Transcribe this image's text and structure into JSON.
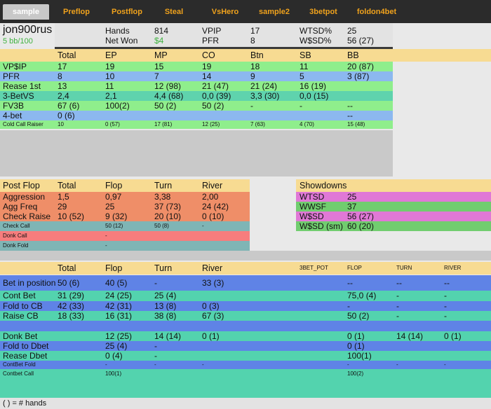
{
  "tabs": [
    {
      "label": "sample",
      "active": true
    },
    {
      "label": "Preflop",
      "active": false
    },
    {
      "label": "Postflop",
      "active": false
    },
    {
      "label": "Steal",
      "active": false
    },
    {
      "label": "VsHero",
      "active": false
    },
    {
      "label": "sample2",
      "active": false
    },
    {
      "label": "3betpot",
      "active": false
    },
    {
      "label": "foldon4bet",
      "active": false
    }
  ],
  "player": {
    "name": "jon900rus",
    "rate": "5 bb/100",
    "stats_row1": [
      "Hands",
      "814",
      "VPIP",
      "17",
      "WTSD%",
      "25"
    ],
    "stats_row2": [
      "Net Won",
      "$4",
      "PFR",
      "8",
      "W$SD%",
      "56 (27)"
    ]
  },
  "preflop": {
    "headers": [
      "Total",
      "EP",
      "MP",
      "CO",
      "Btn",
      "SB",
      "BB"
    ],
    "rows": [
      {
        "label": "VP$IP",
        "cells": [
          "17",
          "19",
          "15",
          "19",
          "18",
          "11",
          "20 (87)"
        ]
      },
      {
        "label": "PFR",
        "cells": [
          "8",
          "10",
          "7",
          "14",
          "9",
          "5",
          "3 (87)"
        ]
      },
      {
        "label": "Rease 1st",
        "cells": [
          "13",
          "11",
          "12 (98)",
          "21 (47)",
          "21 (24)",
          "16 (19)",
          ""
        ]
      },
      {
        "label": "3-BetVS",
        "cells": [
          "2,4",
          "2,1",
          "4,4 (68)",
          "0,0 (39)",
          "3,3 (30)",
          "0,0 (15)",
          ""
        ]
      },
      {
        "label": "FV3B",
        "cells": [
          "67 (6)",
          "100(2)",
          "50 (2)",
          "50 (2)",
          "-",
          "-",
          "--"
        ]
      },
      {
        "label": "4-bet",
        "cells": [
          "0 (6)",
          "",
          "",
          "",
          "",
          "",
          "--"
        ]
      },
      {
        "label": "Cold Call Raiser",
        "cells": [
          "10",
          "0 (57)",
          "17 (81)",
          "12 (25)",
          "7 (63)",
          "4 (70)",
          "15 (48)"
        ]
      }
    ]
  },
  "postflop": {
    "title": "Post Flop",
    "headers": [
      "Total",
      "Flop",
      "Turn",
      "River"
    ],
    "rows": [
      {
        "label": "Aggression",
        "cells": [
          "1,5",
          "0,97",
          "3,38",
          "2,00"
        ]
      },
      {
        "label": "Agg Freq",
        "cells": [
          "29",
          "25",
          "37 (73)",
          "24 (42)"
        ]
      },
      {
        "label": "Check Raise",
        "cells": [
          "10 (52)",
          "9 (32)",
          "20 (10)",
          "0 (10)"
        ]
      },
      {
        "label": "Check Call",
        "cells": [
          "",
          "50 (12)",
          "50 (8)",
          "-"
        ]
      },
      {
        "label": "Donk Call",
        "cells": [
          "",
          "-",
          "",
          ""
        ]
      },
      {
        "label": "Donk  Fold",
        "cells": [
          "",
          "-",
          "",
          ""
        ]
      }
    ]
  },
  "showdowns": {
    "title": "Showdowns",
    "rows": [
      {
        "label": "WTSD",
        "value": "25"
      },
      {
        "label": "WWSF",
        "value": "37"
      },
      {
        "label": "W$SD",
        "value": "56 (27)"
      },
      {
        "label": "W$SD (sm)",
        "value": "60 (20)"
      }
    ]
  },
  "cbet": {
    "headers": [
      "Total",
      "Flop",
      "Turn",
      "River"
    ],
    "pot_headers": [
      "3BET_POT",
      "FLOP",
      "TURN",
      "RIVER"
    ],
    "rows": [
      {
        "label": "Bet in position",
        "cells": [
          "50 (6)",
          "40 (5)",
          "-",
          "33 (3)"
        ],
        "pot": [
          "",
          "--",
          "--",
          "--"
        ]
      },
      {
        "label": "Cont Bet",
        "cells": [
          "31 (29)",
          "24 (25)",
          "25 (4)",
          ""
        ],
        "pot": [
          "",
          "75,0 (4)",
          "-",
          "-"
        ]
      },
      {
        "label": "Fold to CB",
        "cells": [
          "42 (33)",
          "42 (31)",
          "13 (8)",
          "0 (3)"
        ],
        "pot": [
          "",
          "-",
          "-",
          "-"
        ]
      },
      {
        "label": "Raise CB",
        "cells": [
          "18 (33)",
          "16 (31)",
          "38 (8)",
          "67 (3)"
        ],
        "pot": [
          "",
          "50 (2)",
          "-",
          "-"
        ]
      },
      {
        "label": "Donk Bet",
        "cells": [
          "",
          "12 (25)",
          "14 (14)",
          "0 (1)"
        ],
        "pot": [
          "",
          "0 (1)",
          "14 (14)",
          "0 (1)"
        ]
      },
      {
        "label": "Fold to Dbet",
        "cells": [
          "",
          "25 (4)",
          "-",
          ""
        ],
        "pot": [
          "",
          "0 (1)",
          "",
          ""
        ]
      },
      {
        "label": "Rease Dbet",
        "cells": [
          "",
          "0 (4)",
          "-",
          ""
        ],
        "pot": [
          "",
          "100(1)",
          "",
          ""
        ]
      },
      {
        "label": "ContBet Fold",
        "cells": [
          "",
          "-",
          "-",
          "-"
        ],
        "pot": [
          "",
          "-",
          "-",
          "-"
        ]
      },
      {
        "label": "Contbet Call",
        "cells": [
          "",
          "100(1)",
          "",
          ""
        ],
        "pot": [
          "",
          "100(2)",
          "",
          ""
        ]
      }
    ]
  },
  "footer": "( ) = # hands",
  "colors": {
    "tab_bar": "#2b2b2b",
    "tab_text": "#f0a21c",
    "header_yellow": "#f7db92",
    "pf_green": "#8fee8c",
    "pf_blue": "#8cb8ef",
    "pf_teal": "#5fd3ad",
    "post_orange": "#ef8e68",
    "post_red": "#f77d7d",
    "post_grey_teal": "#7fb5b5",
    "sd_magenta": "#e078d6",
    "sd_green": "#71cd6f",
    "cb_blue": "#5f83e6",
    "cb_teal": "#53d3ae"
  }
}
